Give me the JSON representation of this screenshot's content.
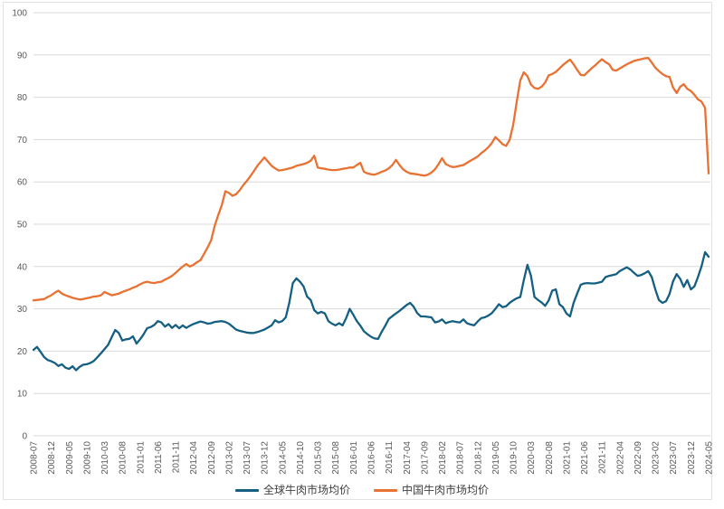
{
  "colors": {
    "background": "#ffffff",
    "frame_border": "#e2e2e2",
    "gridline": "#d9d9d9",
    "axis_text": "#595959",
    "legend_text": "#404040",
    "series_global": "#156082",
    "series_china": "#E97132"
  },
  "chart_data": {
    "type": "line",
    "title": "",
    "xlabel": "",
    "ylabel": "",
    "ylim": [
      0,
      100
    ],
    "y_ticks": [
      0,
      10,
      20,
      30,
      40,
      50,
      60,
      70,
      80,
      90,
      100
    ],
    "grid": "horizontal",
    "legend_position": "bottom-center",
    "x_start": "2008-07",
    "x_end": "2024-05",
    "x_frequency": "monthly",
    "x_tick_interval_months": 5,
    "x_tick_labels": [
      "2008-07",
      "2008-12",
      "2009-05",
      "2009-10",
      "2010-03",
      "2010-08",
      "2011-01",
      "2011-06",
      "2011-11",
      "2012-04",
      "2012-09",
      "2013-02",
      "2013-07",
      "2013-12",
      "2014-05",
      "2014-10",
      "2015-03",
      "2015-08",
      "2016-01",
      "2016-06",
      "2016-11",
      "2017-04",
      "2017-09",
      "2018-02",
      "2018-07",
      "2018-12",
      "2019-05",
      "2019-10",
      "2020-03",
      "2020-08",
      "2021-01",
      "2021-06",
      "2021-11",
      "2022-04",
      "2022-09",
      "2023-02",
      "2023-07",
      "2023-12",
      "2024-05"
    ],
    "series": [
      {
        "name": "全球牛肉市场均价",
        "color": "#156082",
        "values": [
          20.3,
          21.0,
          19.8,
          18.6,
          17.9,
          17.6,
          17.2,
          16.5,
          16.9,
          16.1,
          15.8,
          16.4,
          15.5,
          16.3,
          16.8,
          16.9,
          17.2,
          17.7,
          18.6,
          19.5,
          20.5,
          21.5,
          23.3,
          25.0,
          24.3,
          22.5,
          22.8,
          22.9,
          23.5,
          21.8,
          22.8,
          24.0,
          25.4,
          25.7,
          26.2,
          27.1,
          26.8,
          25.8,
          26.4,
          25.5,
          26.2,
          25.4,
          26.1,
          25.5,
          26.0,
          26.4,
          26.7,
          27.0,
          26.8,
          26.5,
          26.6,
          26.9,
          27.0,
          27.1,
          26.9,
          26.5,
          25.8,
          25.1,
          24.8,
          24.6,
          24.4,
          24.3,
          24.3,
          24.5,
          24.8,
          25.1,
          25.6,
          26.1,
          27.3,
          26.8,
          27.1,
          28.0,
          31.5,
          36.1,
          37.2,
          36.4,
          35.3,
          32.9,
          32.1,
          29.7,
          28.9,
          29.3,
          28.9,
          27.1,
          26.5,
          26.1,
          26.6,
          26.1,
          27.8,
          30.0,
          28.6,
          27.1,
          26.0,
          24.7,
          24.0,
          23.4,
          23.0,
          22.9,
          24.6,
          26.0,
          27.6,
          28.3,
          28.9,
          29.5,
          30.2,
          30.9,
          31.4,
          30.5,
          29.0,
          28.2,
          28.2,
          28.1,
          28.0,
          26.8,
          27.0,
          27.5,
          26.6,
          26.9,
          27.1,
          26.9,
          26.8,
          27.5,
          26.6,
          26.3,
          26.1,
          27.0,
          27.8,
          28.0,
          28.4,
          29.0,
          30.0,
          31.1,
          30.4,
          30.6,
          31.4,
          32.0,
          32.5,
          32.8,
          36.8,
          40.4,
          37.8,
          32.8,
          32.1,
          31.5,
          30.7,
          32.0,
          34.3,
          34.6,
          31.1,
          30.4,
          28.9,
          28.2,
          31.4,
          33.6,
          35.7,
          36.0,
          36.1,
          36.0,
          36.0,
          36.2,
          36.4,
          37.5,
          37.8,
          38.0,
          38.2,
          38.9,
          39.4,
          39.8,
          39.3,
          38.5,
          37.8,
          38.0,
          38.4,
          38.9,
          37.5,
          34.6,
          32.1,
          31.4,
          31.8,
          33.5,
          36.5,
          38.2,
          37.1,
          35.2,
          36.8,
          34.6,
          35.3,
          37.5,
          40.0,
          43.4,
          42.3
        ]
      },
      {
        "name": "中国牛肉市场均价",
        "color": "#E97132",
        "values": [
          32.0,
          32.1,
          32.2,
          32.3,
          32.8,
          33.2,
          33.8,
          34.3,
          33.6,
          33.2,
          32.9,
          32.6,
          32.4,
          32.2,
          32.3,
          32.5,
          32.7,
          32.9,
          33.0,
          33.2,
          34.0,
          33.6,
          33.2,
          33.4,
          33.6,
          34.0,
          34.3,
          34.6,
          35.0,
          35.3,
          35.8,
          36.2,
          36.4,
          36.2,
          36.1,
          36.3,
          36.4,
          36.9,
          37.3,
          37.8,
          38.5,
          39.3,
          40.0,
          40.6,
          40.0,
          40.4,
          41.0,
          41.5,
          43.0,
          44.5,
          46.2,
          49.6,
          52.2,
          54.5,
          57.8,
          57.4,
          56.7,
          57.1,
          58.0,
          59.2,
          60.2,
          61.3,
          62.5,
          63.8,
          64.8,
          65.8,
          64.8,
          63.8,
          63.2,
          62.7,
          62.8,
          63.0,
          63.2,
          63.4,
          63.8,
          64.0,
          64.2,
          64.5,
          65.0,
          66.2,
          63.4,
          63.2,
          63.1,
          62.9,
          62.8,
          62.8,
          62.9,
          63.1,
          63.2,
          63.4,
          63.4,
          64.0,
          64.5,
          62.4,
          62.0,
          61.8,
          61.7,
          62.0,
          62.4,
          62.7,
          63.2,
          64.0,
          65.2,
          64.0,
          63.0,
          62.4,
          62.0,
          61.9,
          61.8,
          61.6,
          61.5,
          61.7,
          62.2,
          63.0,
          64.2,
          65.6,
          64.2,
          63.8,
          63.5,
          63.6,
          63.8,
          64.0,
          64.5,
          65.0,
          65.5,
          66.0,
          66.8,
          67.4,
          68.2,
          69.2,
          70.6,
          69.8,
          68.9,
          68.5,
          69.9,
          73.5,
          79.0,
          84.0,
          85.9,
          85.0,
          83.0,
          82.2,
          82.0,
          82.5,
          83.5,
          85.2,
          85.5,
          86.0,
          86.8,
          87.6,
          88.3,
          88.9,
          87.8,
          86.5,
          85.3,
          85.2,
          86.0,
          86.8,
          87.5,
          88.3,
          89.0,
          88.3,
          87.8,
          86.5,
          86.3,
          86.8,
          87.3,
          87.8,
          88.2,
          88.6,
          88.8,
          89.0,
          89.2,
          89.3,
          88.2,
          87.0,
          86.2,
          85.5,
          85.0,
          84.8,
          82.3,
          81.0,
          82.5,
          83.1,
          82.0,
          81.5,
          80.6,
          79.5,
          79.0,
          77.5,
          62.0
        ]
      }
    ]
  }
}
